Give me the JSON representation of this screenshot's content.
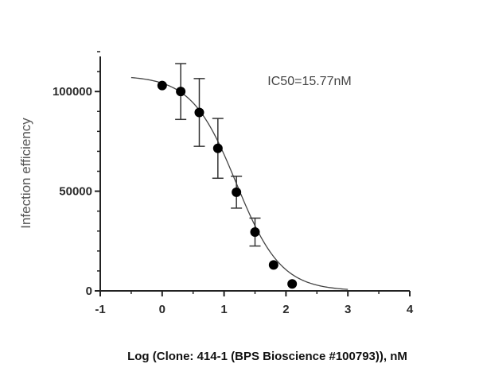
{
  "chart_data": {
    "type": "scatter",
    "xlabel": "Log (Clone: 414-1 (BPS Bioscience #100793)), nM",
    "ylabel": "Infection efficiency",
    "annotation": "IC50=15.77nM",
    "xlim": [
      -1,
      4
    ],
    "ylim": [
      0,
      120000
    ],
    "x_ticks": [
      -1,
      0,
      1,
      2,
      3,
      4
    ],
    "x_tick_labels": [
      "-1",
      "0",
      "1",
      "2",
      "3",
      "4"
    ],
    "y_ticks": [
      0,
      50000,
      100000
    ],
    "y_tick_labels": [
      "0",
      "50000",
      "100000"
    ],
    "series": [
      {
        "points": [
          {
            "x": 0.0,
            "y": 103000,
            "err": 0
          },
          {
            "x": 0.3,
            "y": 100000,
            "err": 14000
          },
          {
            "x": 0.6,
            "y": 89500,
            "err": 17000
          },
          {
            "x": 0.9,
            "y": 71500,
            "err": 15000
          },
          {
            "x": 1.2,
            "y": 49500,
            "err": 8000
          },
          {
            "x": 1.5,
            "y": 29500,
            "err": 7000
          },
          {
            "x": 1.8,
            "y": 13000,
            "err": 0
          },
          {
            "x": 2.1,
            "y": 3500,
            "err": 0
          }
        ]
      }
    ],
    "fit": {
      "model": "four-parameter logistic",
      "top": 108000,
      "bottom": 0,
      "logIC50": 1.198,
      "hill": 1.2,
      "x_range": [
        -0.5,
        3.0
      ]
    },
    "grid": false,
    "colors": {
      "marker": "#000000",
      "curve": "#444444",
      "axis": "#222222"
    }
  }
}
